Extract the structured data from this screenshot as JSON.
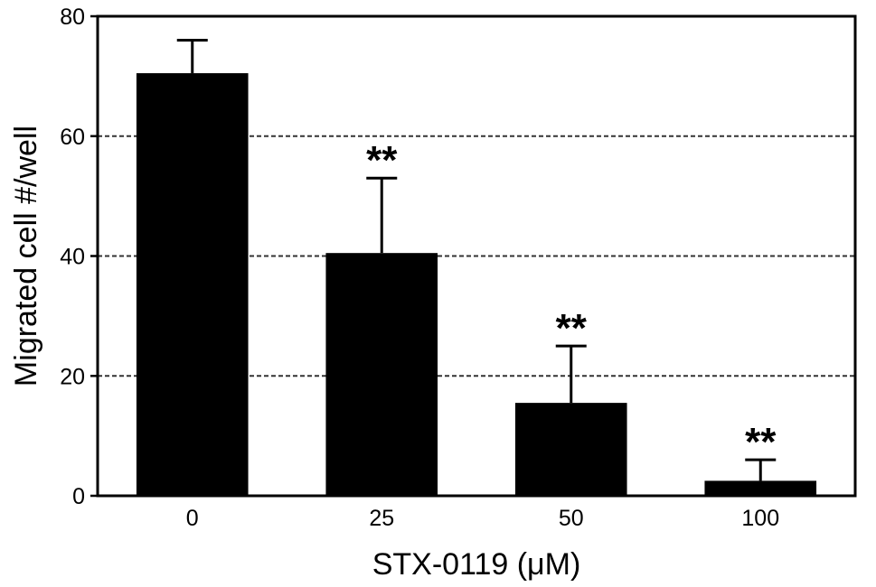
{
  "chart_data": {
    "type": "bar",
    "categories": [
      "0",
      "25",
      "50",
      "100"
    ],
    "values": [
      70.5,
      40.5,
      15.5,
      2.5
    ],
    "error_bars": [
      5.5,
      12.5,
      9.5,
      3.5
    ],
    "significance": [
      "",
      "**",
      "**",
      "**"
    ],
    "xlabel": "STX-0119 (μM)",
    "ylabel": "Migrated cell #/well",
    "ylim": [
      0,
      80
    ],
    "yticks": [
      0,
      20,
      40,
      60,
      80
    ],
    "grid": "horizontal dashed",
    "bar_color": "#000000"
  }
}
